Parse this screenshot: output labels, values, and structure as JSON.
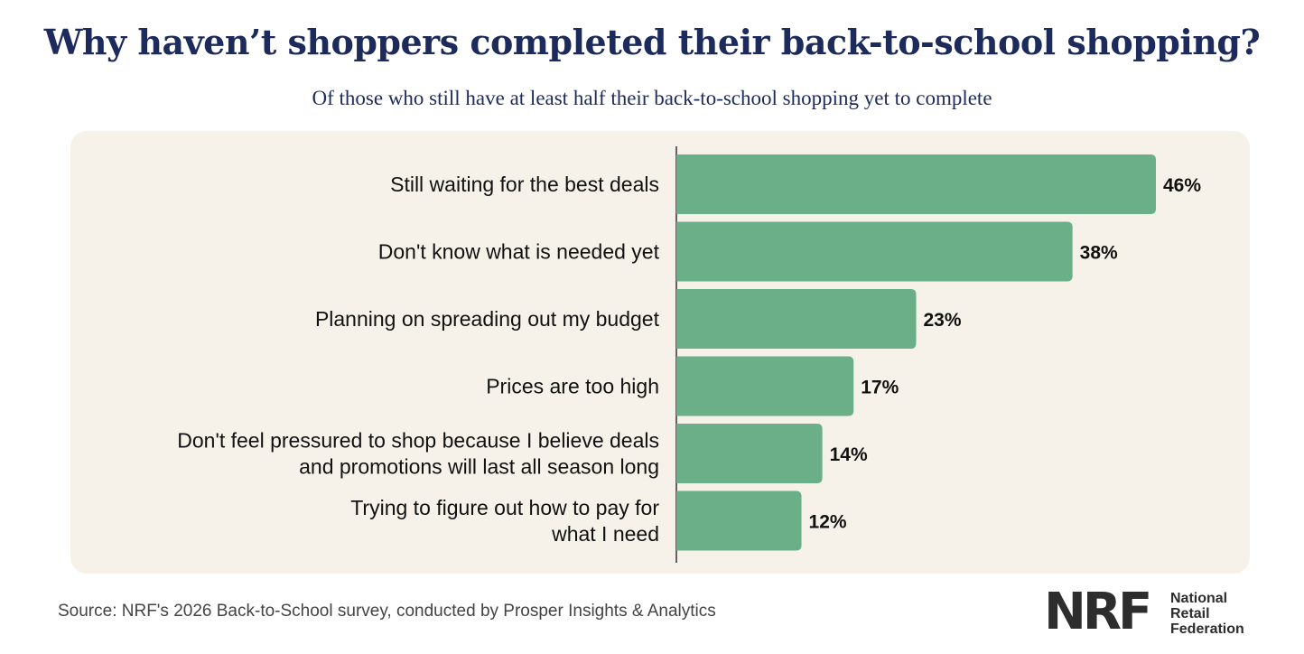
{
  "title": "Why haven’t shoppers completed their back-to-school shopping?",
  "subtitle": "Of those who still have at least half their back-to-school shopping yet to complete",
  "source": "Source: NRF's 2026 Back-to-School survey, conducted by Prosper Insights & Analytics",
  "logo": {
    "mark": "NRF",
    "line1": "National",
    "line2": "Retail",
    "line3": "Federation"
  },
  "colors": {
    "bar": "#6aaf87",
    "title": "#1d2b5c",
    "panel": "#f7f2e9"
  },
  "chart_data": {
    "type": "bar",
    "orientation": "horizontal",
    "categories": [
      [
        "Still waiting for the best deals"
      ],
      [
        "Don't know what is needed yet"
      ],
      [
        "Planning on spreading out my budget"
      ],
      [
        "Prices are too high"
      ],
      [
        "Don't feel pressured to shop because I believe deals",
        "and promotions will last all season long"
      ],
      [
        "Trying to figure out how to pay for",
        "what I need"
      ]
    ],
    "values": [
      46,
      38,
      23,
      17,
      14,
      12
    ],
    "value_labels": [
      "46%",
      "38%",
      "23%",
      "17%",
      "14%",
      "12%"
    ],
    "unit": "%",
    "grid": false,
    "legend": false
  }
}
